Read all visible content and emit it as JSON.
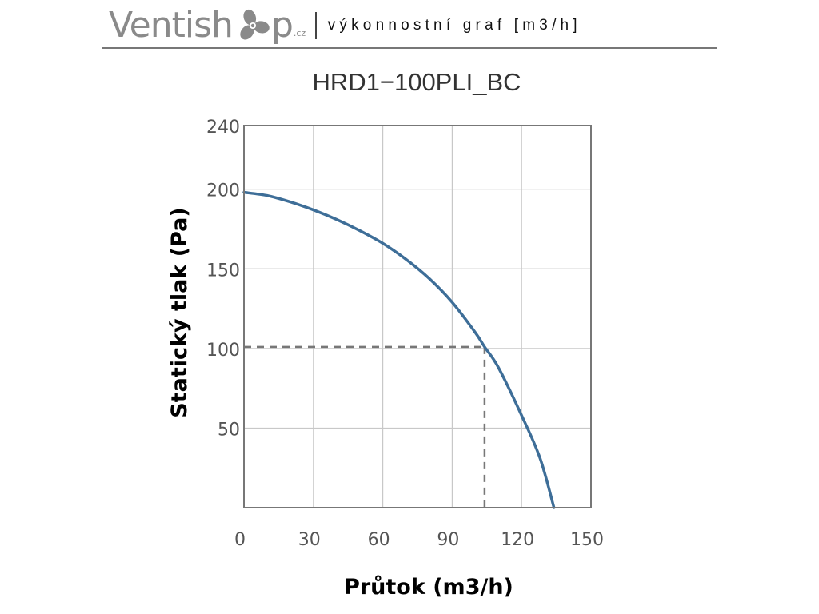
{
  "header": {
    "brand_name": "Ventish",
    "brand_icon": "fan-icon",
    "brand_suffix": "p",
    "brand_tld": ".cz",
    "tagline": "výkonnostní graf [m3/h]",
    "brand_color": "#8a8a8a"
  },
  "chart_data": {
    "type": "line",
    "title": "HRD1−100PLI_BC",
    "xlabel": "Průtok (m3/h)",
    "ylabel": "Statický tlak (Pa)",
    "xlim": [
      0,
      150
    ],
    "ylim": [
      0,
      240
    ],
    "x_ticks": [
      "0",
      "30",
      "60",
      "90",
      "120",
      "150"
    ],
    "y_ticks": [
      "240",
      "200",
      "150",
      "100",
      "50"
    ],
    "grid": true,
    "series": [
      {
        "color": "#3e6e98",
        "x": [
          0,
          10,
          20,
          30,
          40,
          50,
          60,
          70,
          80,
          90,
          100,
          104,
          110,
          120,
          128,
          134
        ],
        "y": [
          198,
          196,
          192,
          187,
          181,
          174,
          166,
          156,
          144,
          129,
          110,
          101,
          88,
          58,
          31,
          0
        ]
      }
    ],
    "reference_point": {
      "x": 104,
      "y": 101,
      "style": "dashed",
      "color": "#777777"
    }
  }
}
